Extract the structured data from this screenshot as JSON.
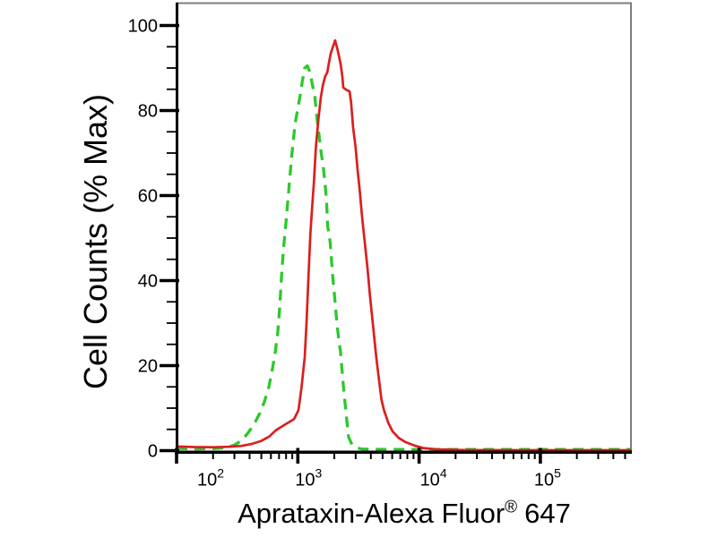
{
  "figure": {
    "kind": "flow cytometry overlay histogram",
    "background": "#ffffff"
  },
  "chart_data": {
    "type": "line",
    "subtype": "flow-cytometry-histogram-overlay",
    "title": "",
    "xlabel": "Aprataxin-Alexa Fluor® 647",
    "xlabel_parts": {
      "main": "Aprataxin-Alexa Fluor",
      "registered": "®",
      "suffix": "647"
    },
    "ylabel": "Cell Counts (% Max)",
    "grid": false,
    "legend": null,
    "x_axis": {
      "scale": "log",
      "min": 100,
      "max": 567000,
      "major_ticks": [
        {
          "value": 100,
          "base": "10",
          "exponent": "2"
        },
        {
          "value": 1000,
          "base": "10",
          "exponent": "3"
        },
        {
          "value": 10000,
          "base": "10",
          "exponent": "4"
        },
        {
          "value": 100000,
          "base": "10",
          "exponent": "5"
        }
      ],
      "minor_tick_multipliers": [
        2,
        3,
        4,
        5,
        6,
        7,
        8,
        9
      ]
    },
    "y_axis": {
      "min": 0,
      "max": 100,
      "minor_step": 5,
      "major_ticks": [
        {
          "value": 0,
          "label": "0"
        },
        {
          "value": 20,
          "label": "20"
        },
        {
          "value": 40,
          "label": "40"
        },
        {
          "value": 60,
          "label": "60"
        },
        {
          "value": 80,
          "label": "80"
        },
        {
          "value": 100,
          "label": "100"
        }
      ]
    },
    "frame": {
      "top_right_color": "#7d7d7d",
      "axis_color": "#000000"
    },
    "series": [
      {
        "name": "green-dashed-curve",
        "color": "#2cc82c",
        "line_style": "dashed",
        "peak": {
          "x": 1200,
          "y": 90.5
        },
        "points": [
          [
            100,
            0.5
          ],
          [
            150,
            0.4
          ],
          [
            210,
            0.5
          ],
          [
            257,
            0.7
          ],
          [
            300,
            1.3
          ],
          [
            340,
            2.3
          ],
          [
            385,
            4
          ],
          [
            435,
            6.2
          ],
          [
            486,
            8.8
          ],
          [
            530,
            11.5
          ],
          [
            577,
            15
          ],
          [
            620,
            19.5
          ],
          [
            650,
            23
          ],
          [
            684,
            28
          ],
          [
            710,
            34
          ],
          [
            734,
            41
          ],
          [
            762,
            47.5
          ],
          [
            800,
            54
          ],
          [
            844,
            61.5
          ],
          [
            888,
            69
          ],
          [
            950,
            77
          ],
          [
            1045,
            83.5
          ],
          [
            1090,
            87
          ],
          [
            1140,
            90
          ],
          [
            1200,
            90.5
          ],
          [
            1260,
            89
          ],
          [
            1320,
            86
          ],
          [
            1380,
            83.5
          ],
          [
            1435,
            78.5
          ],
          [
            1470,
            76
          ],
          [
            1560,
            70
          ],
          [
            1620,
            67
          ],
          [
            1700,
            61
          ],
          [
            1730,
            58
          ],
          [
            1760,
            53
          ],
          [
            1850,
            49
          ],
          [
            1940,
            41
          ],
          [
            2000,
            37
          ],
          [
            2100,
            30
          ],
          [
            2200,
            25
          ],
          [
            2245,
            23.6
          ],
          [
            2360,
            16
          ],
          [
            2486,
            9.5
          ],
          [
            2618,
            3.2
          ],
          [
            2800,
            1.4
          ],
          [
            3111,
            0.6
          ],
          [
            3400,
            0.35
          ],
          [
            5000,
            0.3
          ],
          [
            10000,
            0.3
          ],
          [
            30000,
            0.3
          ],
          [
            100000,
            0.3
          ],
          [
            300000,
            0.3
          ],
          [
            565000,
            0.3
          ]
        ]
      },
      {
        "name": "red-solid-curve",
        "color": "#dc1e1e",
        "line_style": "solid",
        "peak": {
          "x": 2030,
          "y": 96.5
        },
        "points": [
          [
            100,
            1
          ],
          [
            140,
            0.85
          ],
          [
            200,
            0.8
          ],
          [
            270,
            0.9
          ],
          [
            340,
            1.1
          ],
          [
            420,
            1.6
          ],
          [
            500,
            2.3
          ],
          [
            580,
            3.3
          ],
          [
            660,
            4.8
          ],
          [
            790,
            6.2
          ],
          [
            930,
            7.4
          ],
          [
            1012,
            9.5
          ],
          [
            1075,
            15
          ],
          [
            1140,
            22
          ],
          [
            1180,
            30
          ],
          [
            1220,
            40
          ],
          [
            1270,
            51
          ],
          [
            1310,
            57
          ],
          [
            1355,
            63
          ],
          [
            1410,
            71.5
          ],
          [
            1480,
            78
          ],
          [
            1545,
            83
          ],
          [
            1610,
            86
          ],
          [
            1680,
            88
          ],
          [
            1750,
            89
          ],
          [
            1800,
            91
          ],
          [
            1870,
            93.5
          ],
          [
            2030,
            96.5
          ],
          [
            2140,
            94
          ],
          [
            2250,
            91
          ],
          [
            2330,
            88
          ],
          [
            2370,
            85.4
          ],
          [
            2500,
            84.9
          ],
          [
            2670,
            84.5
          ],
          [
            2750,
            82
          ],
          [
            2858,
            76
          ],
          [
            2990,
            71.5
          ],
          [
            3111,
            66
          ],
          [
            3221,
            62
          ],
          [
            3389,
            55
          ],
          [
            3566,
            49
          ],
          [
            3752,
            43
          ],
          [
            3948,
            36
          ],
          [
            4222,
            28
          ],
          [
            4435,
            22
          ],
          [
            4659,
            17
          ],
          [
            4894,
            12
          ],
          [
            5141,
            9.5
          ],
          [
            5576,
            6.5
          ],
          [
            6048,
            4.5
          ],
          [
            6797,
            3
          ],
          [
            7738,
            2
          ],
          [
            9150,
            1.2
          ],
          [
            10820,
            0.6
          ],
          [
            14100,
            0.3
          ],
          [
            23600,
            0.15
          ],
          [
            60000,
            0.1
          ],
          [
            150000,
            0.1
          ],
          [
            400000,
            0.1
          ],
          [
            565000,
            0.1
          ]
        ]
      }
    ]
  }
}
